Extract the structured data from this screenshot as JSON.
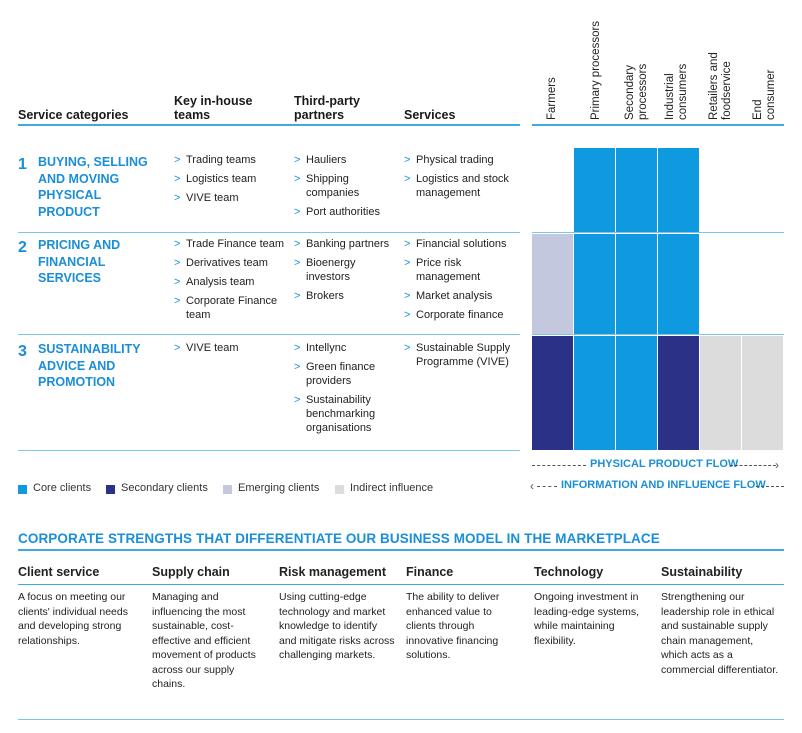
{
  "headers": {
    "service_categories": "Service categories",
    "key_teams": "Key in-house teams",
    "third_party": "Third-party partners",
    "services": "Services"
  },
  "columns": [
    "Farmers",
    "Primary processors",
    "Secondary processors",
    "Industrial consumers",
    "Retailers and foodservice",
    "End consumer"
  ],
  "rows": [
    {
      "number": "1",
      "title": "BUYING, SELLING AND MOVING PHYSICAL PRODUCT",
      "teams": [
        "Trading teams",
        "Logistics team",
        "VIVE team"
      ],
      "partners": [
        "Hauliers",
        "Shipping companies",
        "Port authorities"
      ],
      "services": [
        "Physical trading",
        "Logistics and stock management"
      ],
      "cells": [
        "none",
        "core",
        "core",
        "core",
        "none",
        "none"
      ]
    },
    {
      "number": "2",
      "title": "PRICING AND FINANCIAL SERVICES",
      "teams": [
        "Trade Finance team",
        "Derivatives team",
        "Analysis team",
        "Corporate Finance team"
      ],
      "partners": [
        "Banking partners",
        "Bioenergy investors",
        "Brokers"
      ],
      "services": [
        "Financial solutions",
        "Price risk management",
        "Market analysis",
        "Corporate finance"
      ],
      "cells": [
        "emerging",
        "core",
        "core",
        "core",
        "none",
        "none"
      ]
    },
    {
      "number": "3",
      "title": "SUSTAINABILITY ADVICE AND PROMOTION",
      "teams": [
        "VIVE team"
      ],
      "partners": [
        "Intellync",
        "Green finance providers",
        "Sustainability benchmarking organisations"
      ],
      "services": [
        "Sustainable Supply Programme (VIVE)"
      ],
      "cells": [
        "secondary",
        "core",
        "core",
        "secondary",
        "indirect",
        "indirect"
      ]
    }
  ],
  "colors": {
    "core": "#0f9ae0",
    "secondary": "#2a3187",
    "emerging": "#c4c8df",
    "indirect": "#dcdcdc",
    "accent": "#1a8fd8"
  },
  "legend": {
    "core": "Core clients",
    "secondary": "Secondary clients",
    "emerging": "Emerging clients",
    "indirect": "Indirect influence"
  },
  "flows": {
    "physical": "PHYSICAL PRODUCT FLOW",
    "information": "INFORMATION AND INFLUENCE FLOW"
  },
  "strengths": {
    "title": "CORPORATE STRENGTHS THAT DIFFERENTIATE OUR BUSINESS MODEL IN THE MARKETPLACE",
    "items": [
      {
        "heading": "Client service",
        "text": "A focus on meeting our clients' individual needs and developing strong relationships."
      },
      {
        "heading": "Supply chain",
        "text": "Managing and influencing the most sustainable, cost-effective and efficient movement of products across our supply chains."
      },
      {
        "heading": "Risk management",
        "text": "Using cutting-edge technology and market knowledge to identify and mitigate risks across challenging markets."
      },
      {
        "heading": "Finance",
        "text": "The ability to deliver enhanced value to clients through innovative financing solutions."
      },
      {
        "heading": "Technology",
        "text": "Ongoing investment in leading-edge systems, while maintaining flexibility."
      },
      {
        "heading": "Sustainability",
        "text": "Strengthening our leadership role in ethical and sustainable supply chain management, which acts as a commercial differentiator."
      }
    ]
  }
}
